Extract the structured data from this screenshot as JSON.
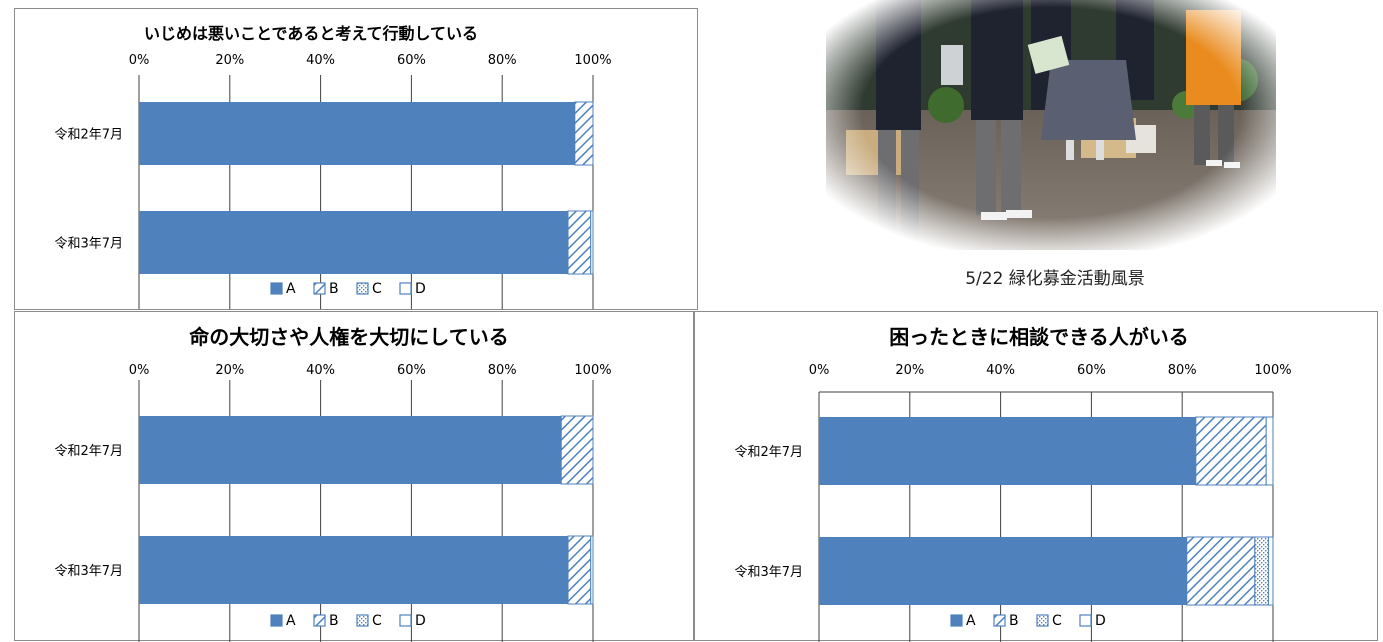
{
  "caption": "5/22 緑化募金活動風景",
  "legend_labels": [
    "A",
    "B",
    "C",
    "D"
  ],
  "colors": {
    "A": "#4f81bd",
    "pattern": "#4f81bd",
    "axis": "#404040",
    "grid": "#404040"
  },
  "chart_data": [
    {
      "type": "bar",
      "orientation": "horizontal-stacked-100",
      "title": "いじめは悪いことであると考えて行動している",
      "categories": [
        "令和2年7月",
        "令和3年7月"
      ],
      "x_ticks": [
        "0%",
        "20%",
        "40%",
        "60%",
        "80%",
        "100%"
      ],
      "xlim": [
        0,
        100
      ],
      "series": [
        {
          "name": "A",
          "values": [
            96,
            94.5
          ]
        },
        {
          "name": "B",
          "values": [
            4,
            5
          ]
        },
        {
          "name": "C",
          "values": [
            0,
            0
          ]
        },
        {
          "name": "D",
          "values": [
            0,
            0.5
          ]
        }
      ],
      "legend": "bottom",
      "grid": true
    },
    {
      "type": "bar",
      "orientation": "horizontal-stacked-100",
      "title": "命の大切さや人権を大切にしている",
      "categories": [
        "令和2年7月",
        "令和3年7月"
      ],
      "x_ticks": [
        "0%",
        "20%",
        "40%",
        "60%",
        "80%",
        "100%"
      ],
      "xlim": [
        0,
        100
      ],
      "series": [
        {
          "name": "A",
          "values": [
            93,
            94.5
          ]
        },
        {
          "name": "B",
          "values": [
            7,
            5
          ]
        },
        {
          "name": "C",
          "values": [
            0,
            0
          ]
        },
        {
          "name": "D",
          "values": [
            0,
            0.5
          ]
        }
      ],
      "legend": "bottom",
      "grid": true
    },
    {
      "type": "bar",
      "orientation": "horizontal-stacked-100",
      "title": "困ったときに相談できる人がいる",
      "categories": [
        "令和2年7月",
        "令和3年7月"
      ],
      "x_ticks": [
        "0%",
        "20%",
        "40%",
        "60%",
        "80%",
        "100%"
      ],
      "xlim": [
        0,
        100
      ],
      "series": [
        {
          "name": "A",
          "values": [
            83,
            81
          ]
        },
        {
          "name": "B",
          "values": [
            15.5,
            15
          ]
        },
        {
          "name": "C",
          "values": [
            0,
            3
          ]
        },
        {
          "name": "D",
          "values": [
            1.5,
            1
          ]
        }
      ],
      "legend": "bottom",
      "grid": true
    }
  ]
}
